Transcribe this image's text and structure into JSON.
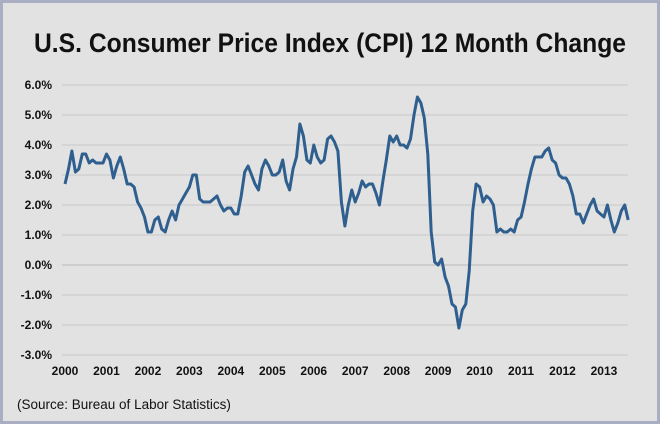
{
  "chart_data": {
    "type": "line",
    "title": "U.S. Consumer Price Index (CPI) 12 Month Change",
    "source": "(Source: Bureau of Labor Statistics)",
    "xlabel": "",
    "ylabel": "",
    "x_start": "2000-01",
    "x_frequency": "monthly",
    "xticks": [
      "2000",
      "2001",
      "2002",
      "2003",
      "2004",
      "2005",
      "2006",
      "2007",
      "2008",
      "2009",
      "2010",
      "2011",
      "2012",
      "2013"
    ],
    "yticks": [
      "6.0%",
      "5.0%",
      "4.0%",
      "3.0%",
      "2.0%",
      "1.0%",
      "0.0%",
      "-1.0%",
      "-2.0%",
      "-3.0%"
    ],
    "ylim": [
      -3,
      6
    ],
    "grid": true,
    "line_color": "#2e5f8f",
    "values": [
      2.7,
      3.2,
      3.8,
      3.1,
      3.2,
      3.7,
      3.7,
      3.4,
      3.5,
      3.4,
      3.4,
      3.4,
      3.7,
      3.5,
      2.9,
      3.3,
      3.6,
      3.2,
      2.7,
      2.7,
      2.6,
      2.1,
      1.9,
      1.6,
      1.1,
      1.1,
      1.5,
      1.6,
      1.2,
      1.1,
      1.5,
      1.8,
      1.5,
      2.0,
      2.2,
      2.4,
      2.6,
      3.0,
      3.0,
      2.2,
      2.1,
      2.1,
      2.1,
      2.2,
      2.3,
      2.0,
      1.8,
      1.9,
      1.9,
      1.7,
      1.7,
      2.3,
      3.1,
      3.3,
      3.0,
      2.7,
      2.5,
      3.2,
      3.5,
      3.3,
      3.0,
      3.0,
      3.1,
      3.5,
      2.8,
      2.5,
      3.2,
      3.6,
      4.7,
      4.3,
      3.5,
      3.4,
      4.0,
      3.6,
      3.4,
      3.5,
      4.2,
      4.3,
      4.1,
      3.8,
      2.1,
      1.3,
      2.0,
      2.5,
      2.1,
      2.4,
      2.8,
      2.6,
      2.7,
      2.7,
      2.4,
      2.0,
      2.8,
      3.5,
      4.3,
      4.1,
      4.3,
      4.0,
      4.0,
      3.9,
      4.2,
      5.0,
      5.6,
      5.4,
      4.9,
      3.7,
      1.1,
      0.1,
      0.0,
      0.2,
      -0.4,
      -0.7,
      -1.3,
      -1.4,
      -2.1,
      -1.5,
      -1.3,
      -0.2,
      1.8,
      2.7,
      2.6,
      2.1,
      2.3,
      2.2,
      2.0,
      1.1,
      1.2,
      1.1,
      1.1,
      1.2,
      1.1,
      1.5,
      1.6,
      2.1,
      2.7,
      3.2,
      3.6,
      3.6,
      3.6,
      3.8,
      3.9,
      3.5,
      3.4,
      3.0,
      2.9,
      2.9,
      2.7,
      2.3,
      1.7,
      1.7,
      1.4,
      1.7,
      2.0,
      2.2,
      1.8,
      1.7,
      1.6,
      2.0,
      1.5,
      1.1,
      1.4,
      1.8,
      2.0,
      1.5
    ]
  }
}
